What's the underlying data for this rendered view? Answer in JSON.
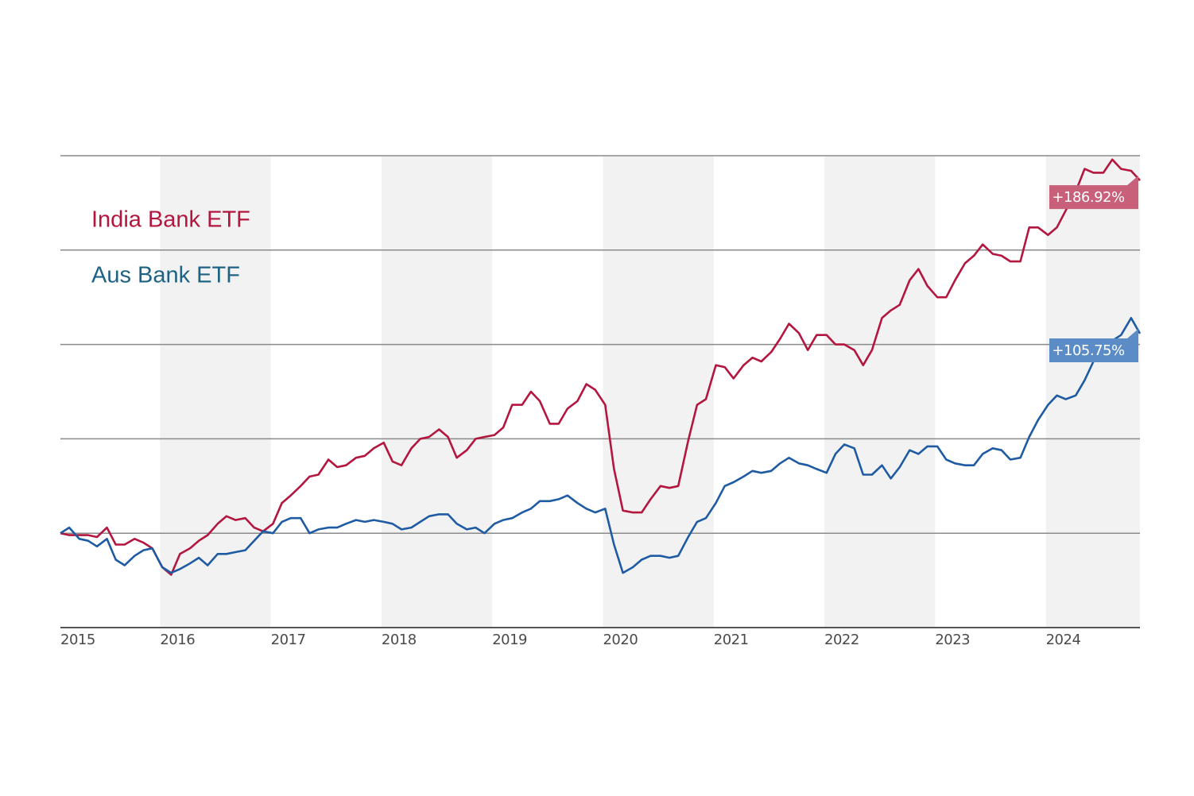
{
  "chart_data": {
    "type": "line",
    "x": [
      2015.1,
      2015.18,
      2015.27,
      2015.35,
      2015.43,
      2015.52,
      2015.6,
      2015.68,
      2015.77,
      2015.85,
      2015.93,
      2016.02,
      2016.1,
      2016.18,
      2016.27,
      2016.35,
      2016.43,
      2016.52,
      2016.6,
      2016.68,
      2016.77,
      2016.85,
      2016.93,
      2017.02,
      2017.1,
      2017.18,
      2017.27,
      2017.35,
      2017.43,
      2017.52,
      2017.6,
      2017.68,
      2017.77,
      2017.85,
      2017.93,
      2018.02,
      2018.1,
      2018.18,
      2018.27,
      2018.35,
      2018.43,
      2018.52,
      2018.6,
      2018.68,
      2018.77,
      2018.85,
      2018.93,
      2019.02,
      2019.1,
      2019.18,
      2019.27,
      2019.35,
      2019.43,
      2019.52,
      2019.6,
      2019.68,
      2019.77,
      2019.85,
      2019.93,
      2020.02,
      2020.1,
      2020.18,
      2020.27,
      2020.35,
      2020.43,
      2020.52,
      2020.6,
      2020.68,
      2020.77,
      2020.85,
      2020.93,
      2021.02,
      2021.1,
      2021.18,
      2021.27,
      2021.35,
      2021.43,
      2021.52,
      2021.6,
      2021.68,
      2021.77,
      2021.85,
      2021.93,
      2022.02,
      2022.1,
      2022.18,
      2022.27,
      2022.35,
      2022.43,
      2022.52,
      2022.6,
      2022.68,
      2022.77,
      2022.85,
      2022.93,
      2023.02,
      2023.1,
      2023.18,
      2023.27,
      2023.35,
      2023.43,
      2023.52,
      2023.6,
      2023.68,
      2023.77,
      2023.85,
      2023.93,
      2024.02,
      2024.1,
      2024.18,
      2024.27,
      2024.35,
      2024.43,
      2024.52,
      2024.6,
      2024.68,
      2024.77,
      2024.85
    ],
    "series": [
      {
        "name": "India Bank ETF",
        "color": "#b3163f",
        "label_color": "#c9607a",
        "values": [
          0,
          -1,
          -1,
          -1,
          -2,
          3,
          -6,
          -6,
          -3,
          -5,
          -8,
          -18,
          -22,
          -11,
          -8,
          -4,
          -1,
          5,
          9,
          7,
          8,
          3,
          1,
          5,
          16,
          20,
          25,
          30,
          31,
          39,
          35,
          36,
          40,
          41,
          45,
          48,
          38,
          36,
          45,
          50,
          51,
          55,
          51,
          40,
          44,
          50,
          51,
          52,
          56,
          68,
          68,
          75,
          70,
          58,
          58,
          66,
          70,
          79,
          76,
          68,
          34,
          12,
          11,
          11,
          18,
          25,
          24,
          25,
          49,
          68,
          71,
          89,
          88,
          82,
          89,
          93,
          91,
          96,
          103,
          111,
          106,
          97,
          105,
          105,
          100,
          100,
          97,
          89,
          97,
          114,
          118,
          121,
          134,
          140,
          131,
          125,
          125,
          134,
          143,
          147,
          153,
          148,
          147,
          144,
          144,
          162,
          162,
          158,
          162,
          171,
          181,
          193,
          191,
          191,
          198,
          193,
          192,
          186.92
        ],
        "value_labels": [
          null,
          null,
          null,
          null,
          null,
          null,
          null,
          null,
          null,
          null,
          null,
          null,
          null,
          null,
          null,
          null,
          null,
          null,
          null,
          null,
          null,
          null,
          null,
          null,
          null,
          null,
          null,
          null,
          null,
          null,
          null,
          null,
          null,
          null,
          null,
          null,
          null,
          null,
          null,
          null,
          null,
          null,
          null,
          null,
          null,
          null,
          null,
          null,
          null,
          null,
          null,
          null,
          null,
          null,
          null,
          null,
          null,
          null,
          null,
          null,
          null,
          null,
          null,
          null,
          null,
          null,
          null,
          null,
          null,
          null,
          null,
          null,
          null,
          null,
          null,
          null,
          null,
          null,
          null,
          null,
          null,
          null,
          null,
          null,
          null,
          null,
          null,
          null,
          null,
          null,
          null,
          null,
          null,
          null,
          null,
          null,
          null,
          null,
          null,
          null,
          null,
          null,
          null,
          null,
          null,
          null,
          null,
          null,
          null,
          null,
          null,
          null,
          null,
          null,
          null,
          null,
          null,
          "+186.92%"
        ]
      },
      {
        "name": "Aus Bank ETF",
        "color": "#1f5ba3",
        "label_color": "#5b8cc6",
        "legend_color": "#1f6384",
        "values": [
          0,
          3,
          -3,
          -4,
          -7,
          -3,
          -14,
          -17,
          -12,
          -9,
          -8,
          -18,
          -21,
          -19,
          -16,
          -13,
          -17,
          -11,
          -11,
          -10,
          -9,
          -4,
          1,
          0,
          6,
          8,
          8,
          0,
          2,
          3,
          3,
          5,
          7,
          6,
          7,
          6,
          5,
          2,
          3,
          6,
          9,
          10,
          10,
          5,
          2,
          3,
          0,
          5,
          7,
          8,
          11,
          13,
          17,
          17,
          18,
          20,
          16,
          13,
          11,
          13,
          -6,
          -21,
          -18,
          -14,
          -12,
          -12,
          -13,
          -12,
          -2,
          6,
          8,
          16,
          25,
          27,
          30,
          33,
          32,
          33,
          37,
          40,
          37,
          36,
          34,
          32,
          42,
          47,
          45,
          31,
          31,
          36,
          29,
          35,
          44,
          42,
          46,
          46,
          39,
          37,
          36,
          36,
          42,
          45,
          44,
          39,
          40,
          51,
          60,
          68,
          73,
          71,
          73,
          81,
          91,
          98,
          102,
          105,
          114,
          105.75
        ],
        "value_labels": [
          null,
          null,
          null,
          null,
          null,
          null,
          null,
          null,
          null,
          null,
          null,
          null,
          null,
          null,
          null,
          null,
          null,
          null,
          null,
          null,
          null,
          null,
          null,
          null,
          null,
          null,
          null,
          null,
          null,
          null,
          null,
          null,
          null,
          null,
          null,
          null,
          null,
          null,
          null,
          null,
          null,
          null,
          null,
          null,
          null,
          null,
          null,
          null,
          null,
          null,
          null,
          null,
          null,
          null,
          null,
          null,
          null,
          null,
          null,
          null,
          null,
          null,
          null,
          null,
          null,
          null,
          null,
          null,
          null,
          null,
          null,
          null,
          null,
          null,
          null,
          null,
          null,
          null,
          null,
          null,
          null,
          null,
          null,
          null,
          null,
          null,
          null,
          null,
          null,
          null,
          null,
          null,
          null,
          null,
          null,
          null,
          null,
          null,
          null,
          null,
          null,
          null,
          null,
          null,
          null,
          null,
          null,
          null,
          null,
          null,
          null,
          null,
          null,
          null,
          null,
          null,
          null,
          "+105.75%"
        ]
      }
    ],
    "xlim": [
      2015.1,
      2024.85
    ],
    "xticks": [
      2015,
      2016,
      2017,
      2018,
      2019,
      2020,
      2021,
      2022,
      2023,
      2024
    ],
    "ylim": [
      -50,
      200
    ],
    "yticks": [
      -50,
      0,
      50,
      100,
      150,
      200
    ],
    "grid": true,
    "shaded_bands": true
  }
}
